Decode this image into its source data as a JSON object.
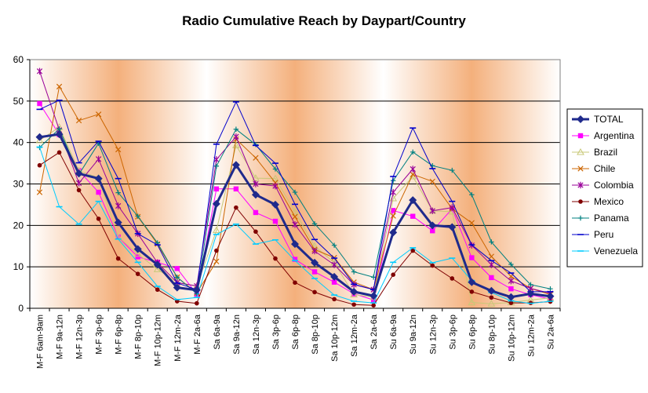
{
  "chart_data": {
    "type": "line",
    "title": "Radio Cumulative Reach by Daypart/Country",
    "xlabel": "",
    "ylabel": "",
    "ylim": [
      0,
      60
    ],
    "yticks": [
      0,
      10,
      20,
      30,
      40,
      50,
      60
    ],
    "grid": true,
    "legend_position": "right",
    "categories": [
      "M-F 6am-9am",
      "M-F 9a-12n",
      "M-F 12n-3p",
      "M-F 3p-6p",
      "M-F 6p-8p",
      "M-F 8p-10p",
      "M-F 10p-12m",
      "M-F 12m-2a",
      "M-F 2a-6a",
      "Sa 6a-9a",
      "Sa 9a-12n",
      "Sa 12n-3p",
      "Sa 3p-6p",
      "Sa 6p-8p",
      "Sa 8p-10p",
      "Sa 10p-12m",
      "Sa 12m-2a",
      "Sa 2a-6a",
      "Su 6a-9a",
      "Su 9a-12n",
      "Su 12n-3p",
      "Su 3p-6p",
      "Su 6p-8p",
      "Su 8p-10p",
      "Su 10p-12m",
      "Su 12m-2a",
      "Su 2a-6a"
    ],
    "series": [
      {
        "name": "TOTAL",
        "color": "#1f2a8c",
        "marker": "diamond",
        "width": 3,
        "values": [
          41.3,
          42,
          32.5,
          31.3,
          20.7,
          14.3,
          10.5,
          5,
          4.4,
          25.2,
          34.6,
          27.4,
          25,
          15.5,
          11,
          7.6,
          4,
          3,
          18.3,
          26.1,
          20,
          19.6,
          6.3,
          4.2,
          2.7,
          3.5,
          2.9
        ]
      },
      {
        "name": "Argentina",
        "color": "#ff00ff",
        "marker": "square",
        "width": 1,
        "values": [
          49.4,
          41.9,
          33.2,
          28,
          17.2,
          12.4,
          11.1,
          9.6,
          3.4,
          28.8,
          28.8,
          23.1,
          21,
          11.8,
          8.8,
          6.3,
          3.5,
          2,
          23.6,
          22.2,
          18.7,
          24,
          12.2,
          7.4,
          4.7,
          3.3,
          2.2
        ]
      },
      {
        "name": "Brazil",
        "color": "#c8c878",
        "marker": "triangle",
        "width": 1,
        "values": [
          40.5,
          43.7,
          33.2,
          31.5,
          17.2,
          13.1,
          9.4,
          6.2,
          5.3,
          18.8,
          39.3,
          31.4,
          31.3,
          23.3,
          15,
          11,
          3.3,
          2.7,
          26.5,
          31.8,
          23.5,
          23.3,
          1.4,
          1.1,
          1.4,
          2,
          2.5
        ]
      },
      {
        "name": "Chile",
        "color": "#cc6600",
        "marker": "x",
        "width": 1,
        "values": [
          28,
          53.5,
          45.3,
          46.8,
          38.3,
          22.1,
          15.5,
          7.5,
          3.7,
          11.3,
          40.8,
          36.3,
          30.3,
          22.1,
          14.2,
          12.2,
          6.3,
          4.5,
          22.3,
          32.3,
          30.6,
          24,
          20.6,
          12.5,
          7.7,
          4.8,
          3.3
        ]
      },
      {
        "name": "Colombia",
        "color": "#990099",
        "marker": "star",
        "width": 1,
        "values": [
          57.2,
          43,
          30.2,
          36,
          24.7,
          18,
          11,
          6.2,
          5.4,
          35.9,
          41.4,
          30,
          29.5,
          20.2,
          13.8,
          10.5,
          5.7,
          4.5,
          28,
          33.6,
          23.5,
          24.3,
          15.2,
          10.5,
          6.6,
          4.8,
          3.6
        ]
      },
      {
        "name": "Mexico",
        "color": "#800000",
        "marker": "circle",
        "width": 1,
        "values": [
          34.5,
          37.6,
          28.5,
          21.6,
          12,
          8.3,
          4.5,
          1.7,
          1.2,
          13.9,
          24.3,
          18.5,
          12,
          6.2,
          3.9,
          2.2,
          0.9,
          0.7,
          8.1,
          13.9,
          10.3,
          7.2,
          4,
          2.6,
          1.3,
          1.3,
          1.6
        ]
      },
      {
        "name": "Panama",
        "color": "#008080",
        "marker": "plus",
        "width": 1,
        "values": [
          38.8,
          43.3,
          32.3,
          39.8,
          27.9,
          22.2,
          15.8,
          7.5,
          3.5,
          34.3,
          43.2,
          39.5,
          33.6,
          28,
          20.4,
          15.2,
          8.8,
          7.5,
          30.8,
          37.7,
          34.4,
          33.3,
          27.4,
          16,
          10.6,
          5.7,
          4.7
        ]
      },
      {
        "name": "Peru",
        "color": "#0000cc",
        "marker": "hline",
        "width": 1,
        "values": [
          48,
          50.2,
          35.1,
          40.3,
          31.3,
          18,
          15.3,
          6.1,
          4.5,
          39.6,
          49.8,
          39.3,
          35,
          25.1,
          16.6,
          12.1,
          5.8,
          4.5,
          31.8,
          43.5,
          33.7,
          25.8,
          15.3,
          11.5,
          8.5,
          4,
          4
        ]
      },
      {
        "name": "Venezuela",
        "color": "#00ccff",
        "marker": "hline",
        "width": 1,
        "values": [
          38.9,
          24.5,
          20.3,
          25.8,
          16.7,
          11.1,
          5.3,
          2.1,
          2.6,
          17.8,
          20.3,
          15.5,
          16.5,
          11.5,
          7.2,
          3.2,
          1.7,
          1.3,
          11.1,
          14.6,
          11,
          12.1,
          6.7,
          3.8,
          1.8,
          1.2,
          1.7
        ]
      }
    ]
  }
}
